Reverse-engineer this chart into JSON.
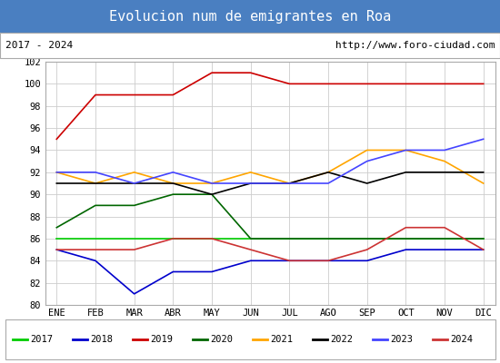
{
  "title": "Evolucion num de emigrantes en Roa",
  "subtitle_left": "2017 - 2024",
  "subtitle_right": "http://www.foro-ciudad.com",
  "title_bg": "#4a7fc1",
  "months": [
    "ENE",
    "FEB",
    "MAR",
    "ABR",
    "MAY",
    "JUN",
    "JUL",
    "AGO",
    "SEP",
    "OCT",
    "NOV",
    "DIC"
  ],
  "ylim": [
    80,
    102
  ],
  "yticks": [
    80,
    82,
    84,
    86,
    88,
    90,
    92,
    94,
    96,
    98,
    100,
    102
  ],
  "series": {
    "2017": {
      "color": "#00cc00",
      "values": [
        86,
        86,
        86,
        86,
        86,
        86,
        86,
        86,
        86,
        86,
        86,
        86
      ]
    },
    "2018": {
      "color": "#0000cc",
      "values": [
        85,
        84,
        81,
        83,
        83,
        84,
        84,
        84,
        84,
        85,
        85,
        85
      ]
    },
    "2019": {
      "color": "#cc0000",
      "values": [
        95,
        99,
        99,
        99,
        101,
        101,
        100,
        100,
        100,
        100,
        100,
        100
      ]
    },
    "2020": {
      "color": "#006600",
      "values": [
        87,
        89,
        89,
        90,
        90,
        86,
        86,
        86,
        86,
        86,
        86,
        86
      ]
    },
    "2021": {
      "color": "#ffa500",
      "values": [
        92,
        91,
        92,
        91,
        91,
        92,
        91,
        92,
        94,
        94,
        93,
        91
      ]
    },
    "2022": {
      "color": "#000000",
      "values": [
        91,
        91,
        91,
        91,
        90,
        91,
        91,
        92,
        91,
        92,
        92,
        92
      ]
    },
    "2023": {
      "color": "#4444ff",
      "values": [
        92,
        92,
        91,
        92,
        91,
        91,
        91,
        91,
        93,
        94,
        94,
        95
      ]
    },
    "2024": {
      "color": "#cc3333",
      "values": [
        85,
        85,
        85,
        86,
        86,
        85,
        84,
        84,
        85,
        87,
        87,
        85
      ]
    }
  },
  "series_order": [
    "2017",
    "2018",
    "2019",
    "2020",
    "2021",
    "2022",
    "2023",
    "2024"
  ]
}
